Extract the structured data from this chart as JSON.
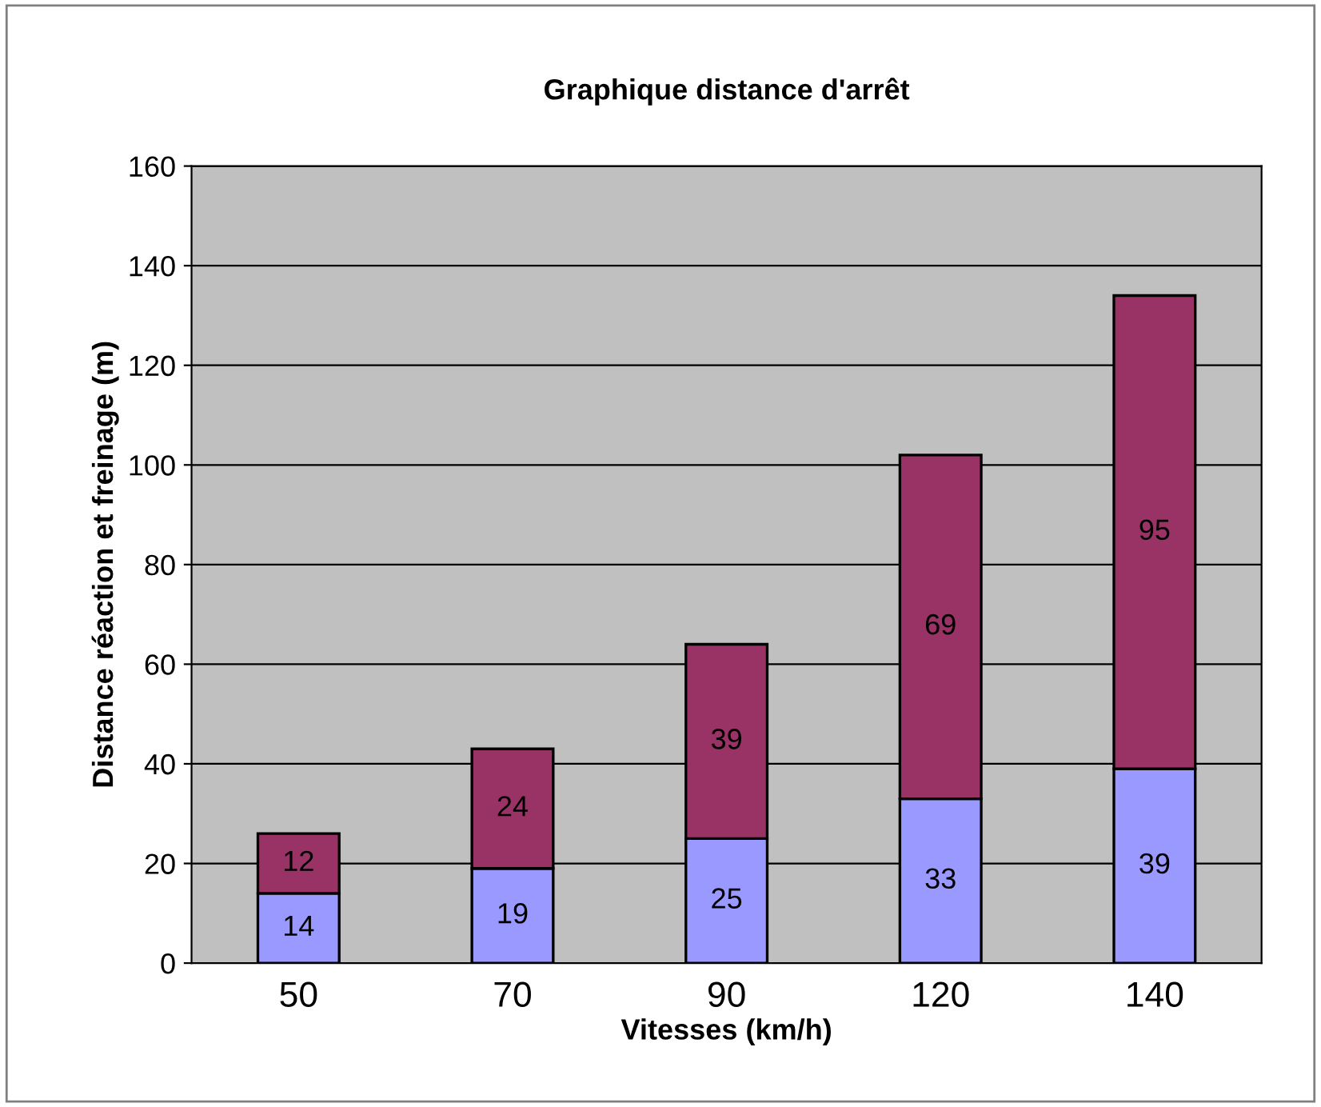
{
  "chart_data": {
    "type": "bar",
    "title": "Graphique distance d'arrêt",
    "xlabel": "Vitesses (km/h)",
    "ylabel": "Distance réaction et freinage (m)",
    "categories": [
      "50",
      "70",
      "90",
      "120",
      "140"
    ],
    "series": [
      {
        "color": "#9999ff",
        "values": [
          14,
          19,
          25,
          33,
          39
        ]
      },
      {
        "color": "#993366",
        "values": [
          12,
          24,
          39,
          69,
          95
        ]
      }
    ],
    "stacked": true,
    "data_labels": true,
    "ylim": [
      0,
      160
    ],
    "yticks": [
      0,
      20,
      40,
      60,
      80,
      100,
      120,
      140,
      160
    ],
    "grid": "y",
    "legend": false
  }
}
